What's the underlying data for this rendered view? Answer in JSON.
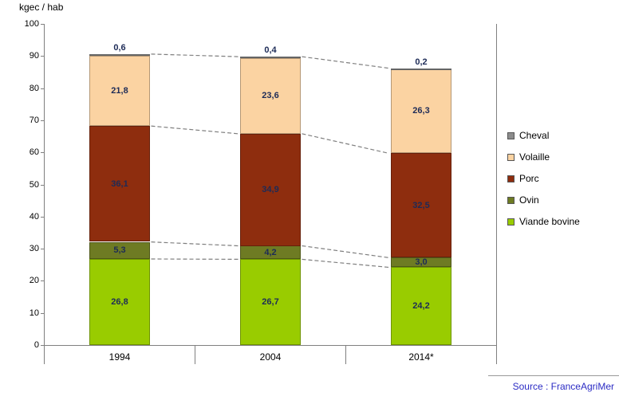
{
  "chart": {
    "y_axis_unit": "kgec / hab",
    "source": "Source : FranceAgriMer"
  },
  "chart_data": {
    "type": "bar",
    "stacked": true,
    "title": "",
    "ylabel": "kgec / hab",
    "xlabel": "",
    "ylim": [
      0,
      100
    ],
    "y_ticks": [
      0,
      10,
      20,
      30,
      40,
      50,
      60,
      70,
      80,
      90,
      100
    ],
    "grid": false,
    "legend_position": "right",
    "categories": [
      "1994",
      "2004",
      "2014*"
    ],
    "series": [
      {
        "name": "Viande bovine",
        "color": "#99CC00",
        "values": [
          26.8,
          26.7,
          24.2
        ]
      },
      {
        "name": "Ovin",
        "color": "#6E7B23",
        "values": [
          5.3,
          4.2,
          3.0
        ]
      },
      {
        "name": "Porc",
        "color": "#8E2D0E",
        "values": [
          36.1,
          34.9,
          32.5
        ]
      },
      {
        "name": "Volaille",
        "color": "#FBD3A2",
        "values": [
          21.8,
          23.6,
          26.3
        ]
      },
      {
        "name": "Cheval",
        "color": "#8C8C8C",
        "values": [
          0.6,
          0.4,
          0.2
        ]
      }
    ],
    "totals": [
      90.6,
      89.8,
      86.2
    ],
    "legend_order": [
      "Cheval",
      "Volaille",
      "Porc",
      "Ovin",
      "Viande bovine"
    ],
    "connector_levels": [
      1,
      2,
      3,
      5
    ],
    "connector_style": {
      "color": "#7F7F7F",
      "dash": "5,3"
    },
    "value_labels": {
      "decimal_separator": ",",
      "color": "#1D2B57"
    },
    "axis_color": "#808080"
  }
}
